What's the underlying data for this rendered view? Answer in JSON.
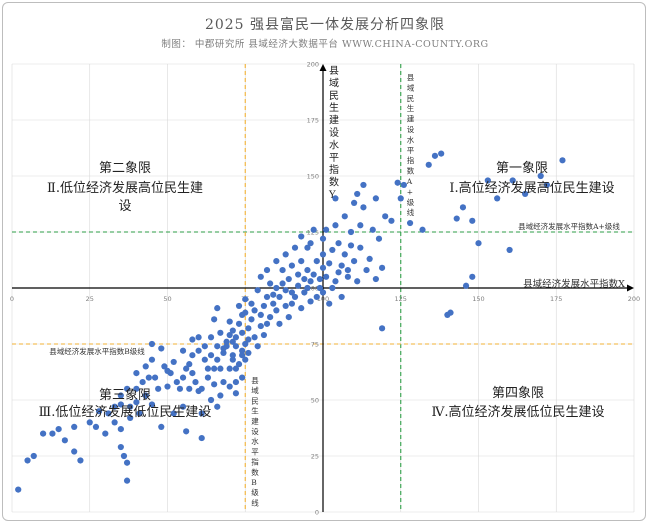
{
  "header": {
    "title": "2025 强县富民一体发展分析四象限",
    "subtitle": "制图： 中郡研究所 县域经济大数据平台 WWW.CHINA-COUNTY.ORG"
  },
  "quadrants": {
    "q1": {
      "name": "第一象限",
      "desc": "Ⅰ.高位经济发展高位民生建设"
    },
    "q2": {
      "name": "第二象限",
      "desc_line1": "Ⅱ.低位经济发展高位民生建",
      "desc_line2": "设"
    },
    "q3": {
      "name": "第三象限",
      "desc": "Ⅲ.低位经济发展低位民生建设"
    },
    "q4": {
      "name": "第四象限",
      "desc": "Ⅳ.高位经济发展低位民生建设"
    }
  },
  "colors": {
    "points": "#4472c4",
    "axis": "#000000",
    "green_line": "#2e9e47",
    "orange_line": "#f2b134",
    "grid": "#d9d9d9"
  },
  "chart_data": {
    "type": "scatter",
    "title": "2025 强县富民一体发展分析四象限",
    "subtitle": "制图： 中郡研究所 县域经济大数据平台 WWW.CHINA-COUNTY.ORG",
    "xlabel": "县域经济发展水平指数X",
    "ylabel": "县域民生建设水平指数Y",
    "xlim": [
      0,
      200
    ],
    "ylim": [
      0,
      200
    ],
    "xticks": [
      0,
      25,
      50,
      75,
      100,
      125,
      150,
      175,
      200
    ],
    "yticks": [
      0,
      25,
      50,
      75,
      100,
      125,
      150,
      175,
      200
    ],
    "xtick_labels": [
      "0",
      "25",
      "50",
      "75",
      "100",
      "125",
      "150",
      "175",
      "200"
    ],
    "ytick_labels": [
      "0",
      "25",
      "50",
      "75",
      "100",
      "125",
      "150",
      "175",
      "200"
    ],
    "axis_crossing": {
      "x": 100,
      "y": 100
    },
    "grid": true,
    "reference_lines": [
      {
        "orientation": "vertical",
        "value": 125,
        "label": "县域民生建设水平指数A+级线",
        "color": "green"
      },
      {
        "orientation": "horizontal",
        "value": 125,
        "label": "县域经济发展水平指数A+级线",
        "color": "green"
      },
      {
        "orientation": "vertical",
        "value": 75,
        "label": "县域民生建设水平指数B级线",
        "color": "orange"
      },
      {
        "orientation": "horizontal",
        "value": 75,
        "label": "县域经济发展水平指数B级线",
        "color": "orange"
      }
    ],
    "series": [
      {
        "points": [
          [
            2,
            10
          ],
          [
            5,
            23
          ],
          [
            7,
            25
          ],
          [
            10,
            35
          ],
          [
            13,
            35
          ],
          [
            15,
            37
          ],
          [
            17,
            32
          ],
          [
            20,
            38
          ],
          [
            20,
            27
          ],
          [
            22,
            23
          ],
          [
            25,
            40
          ],
          [
            27,
            38
          ],
          [
            28,
            45
          ],
          [
            30,
            35
          ],
          [
            31,
            44
          ],
          [
            33,
            47
          ],
          [
            33,
            40
          ],
          [
            35,
            52
          ],
          [
            35,
            37
          ],
          [
            35,
            29
          ],
          [
            35,
            48
          ],
          [
            36,
            25
          ],
          [
            37,
            22
          ],
          [
            37,
            55
          ],
          [
            37,
            14
          ],
          [
            38,
            42
          ],
          [
            38,
            47
          ],
          [
            40,
            49
          ],
          [
            40,
            55
          ],
          [
            40,
            62
          ],
          [
            41,
            44
          ],
          [
            42,
            58
          ],
          [
            43,
            65
          ],
          [
            43,
            52
          ],
          [
            44,
            60
          ],
          [
            45,
            68
          ],
          [
            45,
            75
          ],
          [
            45,
            48
          ],
          [
            46,
            60
          ],
          [
            47,
            55
          ],
          [
            48,
            38
          ],
          [
            48,
            73
          ],
          [
            49,
            65
          ],
          [
            50,
            56
          ],
          [
            50,
            63
          ],
          [
            51,
            62
          ],
          [
            52,
            44
          ],
          [
            52,
            67
          ],
          [
            53,
            58
          ],
          [
            54,
            55
          ],
          [
            55,
            60
          ],
          [
            55,
            72
          ],
          [
            55,
            47
          ],
          [
            56,
            64
          ],
          [
            56,
            36
          ],
          [
            57,
            66
          ],
          [
            57,
            55
          ],
          [
            58,
            70
          ],
          [
            58,
            62
          ],
          [
            58,
            77
          ],
          [
            59,
            58
          ],
          [
            60,
            54
          ],
          [
            60,
            72
          ],
          [
            60,
            78
          ],
          [
            61,
            33
          ],
          [
            61,
            44
          ],
          [
            61,
            55
          ],
          [
            62,
            68
          ],
          [
            62,
            74
          ],
          [
            63,
            60
          ],
          [
            63,
            64
          ],
          [
            64,
            70
          ],
          [
            64,
            50
          ],
          [
            64,
            78
          ],
          [
            65,
            57
          ],
          [
            65,
            64
          ],
          [
            65,
            86
          ],
          [
            66,
            47
          ],
          [
            66,
            68
          ],
          [
            66,
            74
          ],
          [
            66,
            91
          ],
          [
            67,
            52
          ],
          [
            67,
            80
          ],
          [
            67,
            64
          ],
          [
            68,
            58
          ],
          [
            68,
            71
          ],
          [
            68,
            73
          ],
          [
            69,
            74
          ],
          [
            69,
            76
          ],
          [
            70,
            64
          ],
          [
            70,
            79
          ],
          [
            70,
            56
          ],
          [
            70,
            85
          ],
          [
            71,
            68
          ],
          [
            71,
            70
          ],
          [
            71,
            76
          ],
          [
            71,
            81
          ],
          [
            72,
            74
          ],
          [
            72,
            78
          ],
          [
            72,
            53
          ],
          [
            72,
            64
          ],
          [
            72,
            58
          ],
          [
            73,
            66
          ],
          [
            73,
            92
          ],
          [
            73,
            84
          ],
          [
            74,
            80
          ],
          [
            74,
            88
          ],
          [
            74,
            72
          ],
          [
            74,
            60
          ],
          [
            74,
            70
          ],
          [
            75,
            75
          ],
          [
            75,
            68
          ],
          [
            75,
            89
          ],
          [
            75,
            95
          ],
          [
            76,
            82
          ],
          [
            76,
            77
          ],
          [
            76,
            71
          ],
          [
            77,
            86
          ],
          [
            77,
            93
          ],
          [
            78,
            90
          ],
          [
            78,
            78
          ],
          [
            79,
            74
          ],
          [
            79,
            99
          ],
          [
            80,
            83
          ],
          [
            80,
            88
          ],
          [
            80,
            105
          ],
          [
            81,
            92
          ],
          [
            81,
            79
          ],
          [
            82,
            96
          ],
          [
            82,
            84
          ],
          [
            82,
            108
          ],
          [
            83,
            102
          ],
          [
            83,
            87
          ],
          [
            84,
            93
          ],
          [
            84,
            97
          ],
          [
            85,
            90
          ],
          [
            85,
            100
          ],
          [
            85,
            112
          ],
          [
            86,
            84
          ],
          [
            86,
            96
          ],
          [
            87,
            102
          ],
          [
            87,
            108
          ],
          [
            88,
            92
          ],
          [
            88,
            99
          ],
          [
            88,
            115
          ],
          [
            89,
            104
          ],
          [
            89,
            87
          ],
          [
            90,
            93
          ],
          [
            90,
            98
          ],
          [
            90,
            110
          ],
          [
            91,
            118
          ],
          [
            91,
            96
          ],
          [
            92,
            101
          ],
          [
            92,
            106
          ],
          [
            93,
            91
          ],
          [
            93,
            112
          ],
          [
            93,
            123
          ],
          [
            94,
            104
          ],
          [
            94,
            98
          ],
          [
            95,
            100
          ],
          [
            95,
            108
          ],
          [
            95,
            118
          ],
          [
            96,
            94
          ],
          [
            96,
            120
          ],
          [
            96,
            103
          ],
          [
            97,
            106
          ],
          [
            97,
            126
          ],
          [
            98,
            96
          ],
          [
            98,
            112
          ],
          [
            99,
            104
          ],
          [
            99,
            100
          ],
          [
            100,
            98
          ],
          [
            100,
            115
          ],
          [
            100,
            122
          ],
          [
            100,
            109
          ],
          [
            101,
            105
          ],
          [
            101,
            126
          ],
          [
            102,
            111
          ],
          [
            102,
            93
          ],
          [
            103,
            117
          ],
          [
            103,
            100
          ],
          [
            104,
            103
          ],
          [
            104,
            128
          ],
          [
            104,
            140
          ],
          [
            105,
            107
          ],
          [
            105,
            120
          ],
          [
            106,
            110
          ],
          [
            106,
            96
          ],
          [
            107,
            132
          ],
          [
            107,
            115
          ],
          [
            108,
            105
          ],
          [
            108,
            108
          ],
          [
            109,
            125
          ],
          [
            109,
            119
          ],
          [
            110,
            112
          ],
          [
            110,
            138
          ],
          [
            111,
            142
          ],
          [
            111,
            103
          ],
          [
            112,
            128
          ],
          [
            112,
            118
          ],
          [
            113,
            146
          ],
          [
            113,
            136
          ],
          [
            114,
            108
          ],
          [
            115,
            113
          ],
          [
            116,
            126
          ],
          [
            117,
            140
          ],
          [
            117,
            104
          ],
          [
            118,
            122
          ],
          [
            119,
            82
          ],
          [
            119,
            109
          ],
          [
            120,
            132
          ],
          [
            122,
            130
          ],
          [
            124,
            147
          ],
          [
            125,
            140
          ],
          [
            126,
            146
          ],
          [
            128,
            129
          ],
          [
            132,
            126
          ],
          [
            134,
            155
          ],
          [
            136,
            159
          ],
          [
            138,
            160
          ],
          [
            140,
            88
          ],
          [
            141,
            89
          ],
          [
            143,
            131
          ],
          [
            145,
            136
          ],
          [
            146,
            101
          ],
          [
            148,
            130
          ],
          [
            148,
            105
          ],
          [
            150,
            120
          ],
          [
            153,
            148
          ],
          [
            156,
            140
          ],
          [
            160,
            117
          ],
          [
            161,
            148
          ],
          [
            165,
            142
          ],
          [
            170,
            150
          ],
          [
            172,
            146
          ],
          [
            177,
            157
          ]
        ]
      }
    ]
  }
}
